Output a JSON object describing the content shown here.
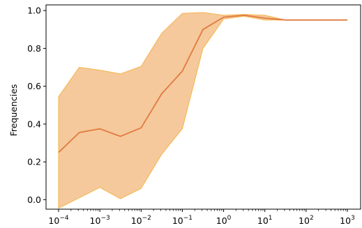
{
  "chart_data": {
    "type": "line",
    "title": "",
    "xlabel": "",
    "ylabel": "Frequencies",
    "x_scale": "log",
    "xlim": [
      0.0001,
      1000
    ],
    "ylim": [
      -0.05,
      1.03
    ],
    "x_ticks": [
      0.0001,
      0.001,
      0.01,
      0.1,
      1,
      10,
      100,
      1000
    ],
    "x_tick_labels": [
      {
        "base": "10",
        "exp": "−4"
      },
      {
        "base": "10",
        "exp": "−3"
      },
      {
        "base": "10",
        "exp": "−2"
      },
      {
        "base": "10",
        "exp": "−1"
      },
      {
        "base": "10",
        "exp": "0"
      },
      {
        "base": "10",
        "exp": "1"
      },
      {
        "base": "10",
        "exp": "2"
      },
      {
        "base": "10",
        "exp": "3"
      }
    ],
    "y_ticks": [
      0.0,
      0.2,
      0.4,
      0.6,
      0.8,
      1.0
    ],
    "y_tick_labels": [
      "0.0",
      "0.2",
      "0.4",
      "0.6",
      "0.8",
      "1.0"
    ],
    "grid": false,
    "legend": "none",
    "x": [
      0.0001,
      0.000316,
      0.001,
      0.00316,
      0.01,
      0.0316,
      0.1,
      0.316,
      1,
      3.16,
      10,
      31.6,
      100,
      316,
      1000
    ],
    "series": [
      {
        "values": [
          0.25,
          0.355,
          0.375,
          0.335,
          0.38,
          0.56,
          0.68,
          0.9,
          0.965,
          0.975,
          0.96,
          0.95,
          0.95,
          0.95,
          0.95
        ],
        "band_lower": [
          -0.045,
          0.01,
          0.065,
          0.005,
          0.06,
          0.24,
          0.375,
          0.8,
          0.955,
          0.97,
          0.95,
          0.95,
          0.95,
          0.95,
          0.95
        ],
        "band_upper": [
          0.545,
          0.7,
          0.685,
          0.665,
          0.705,
          0.88,
          0.985,
          0.99,
          0.975,
          0.98,
          0.975,
          0.95,
          0.95,
          0.95,
          0.95
        ]
      }
    ],
    "colors": {
      "line": "#e07a40",
      "band_fill": "#f5c99b",
      "band_edge": "#f5b44a",
      "axis": "#000000"
    }
  }
}
